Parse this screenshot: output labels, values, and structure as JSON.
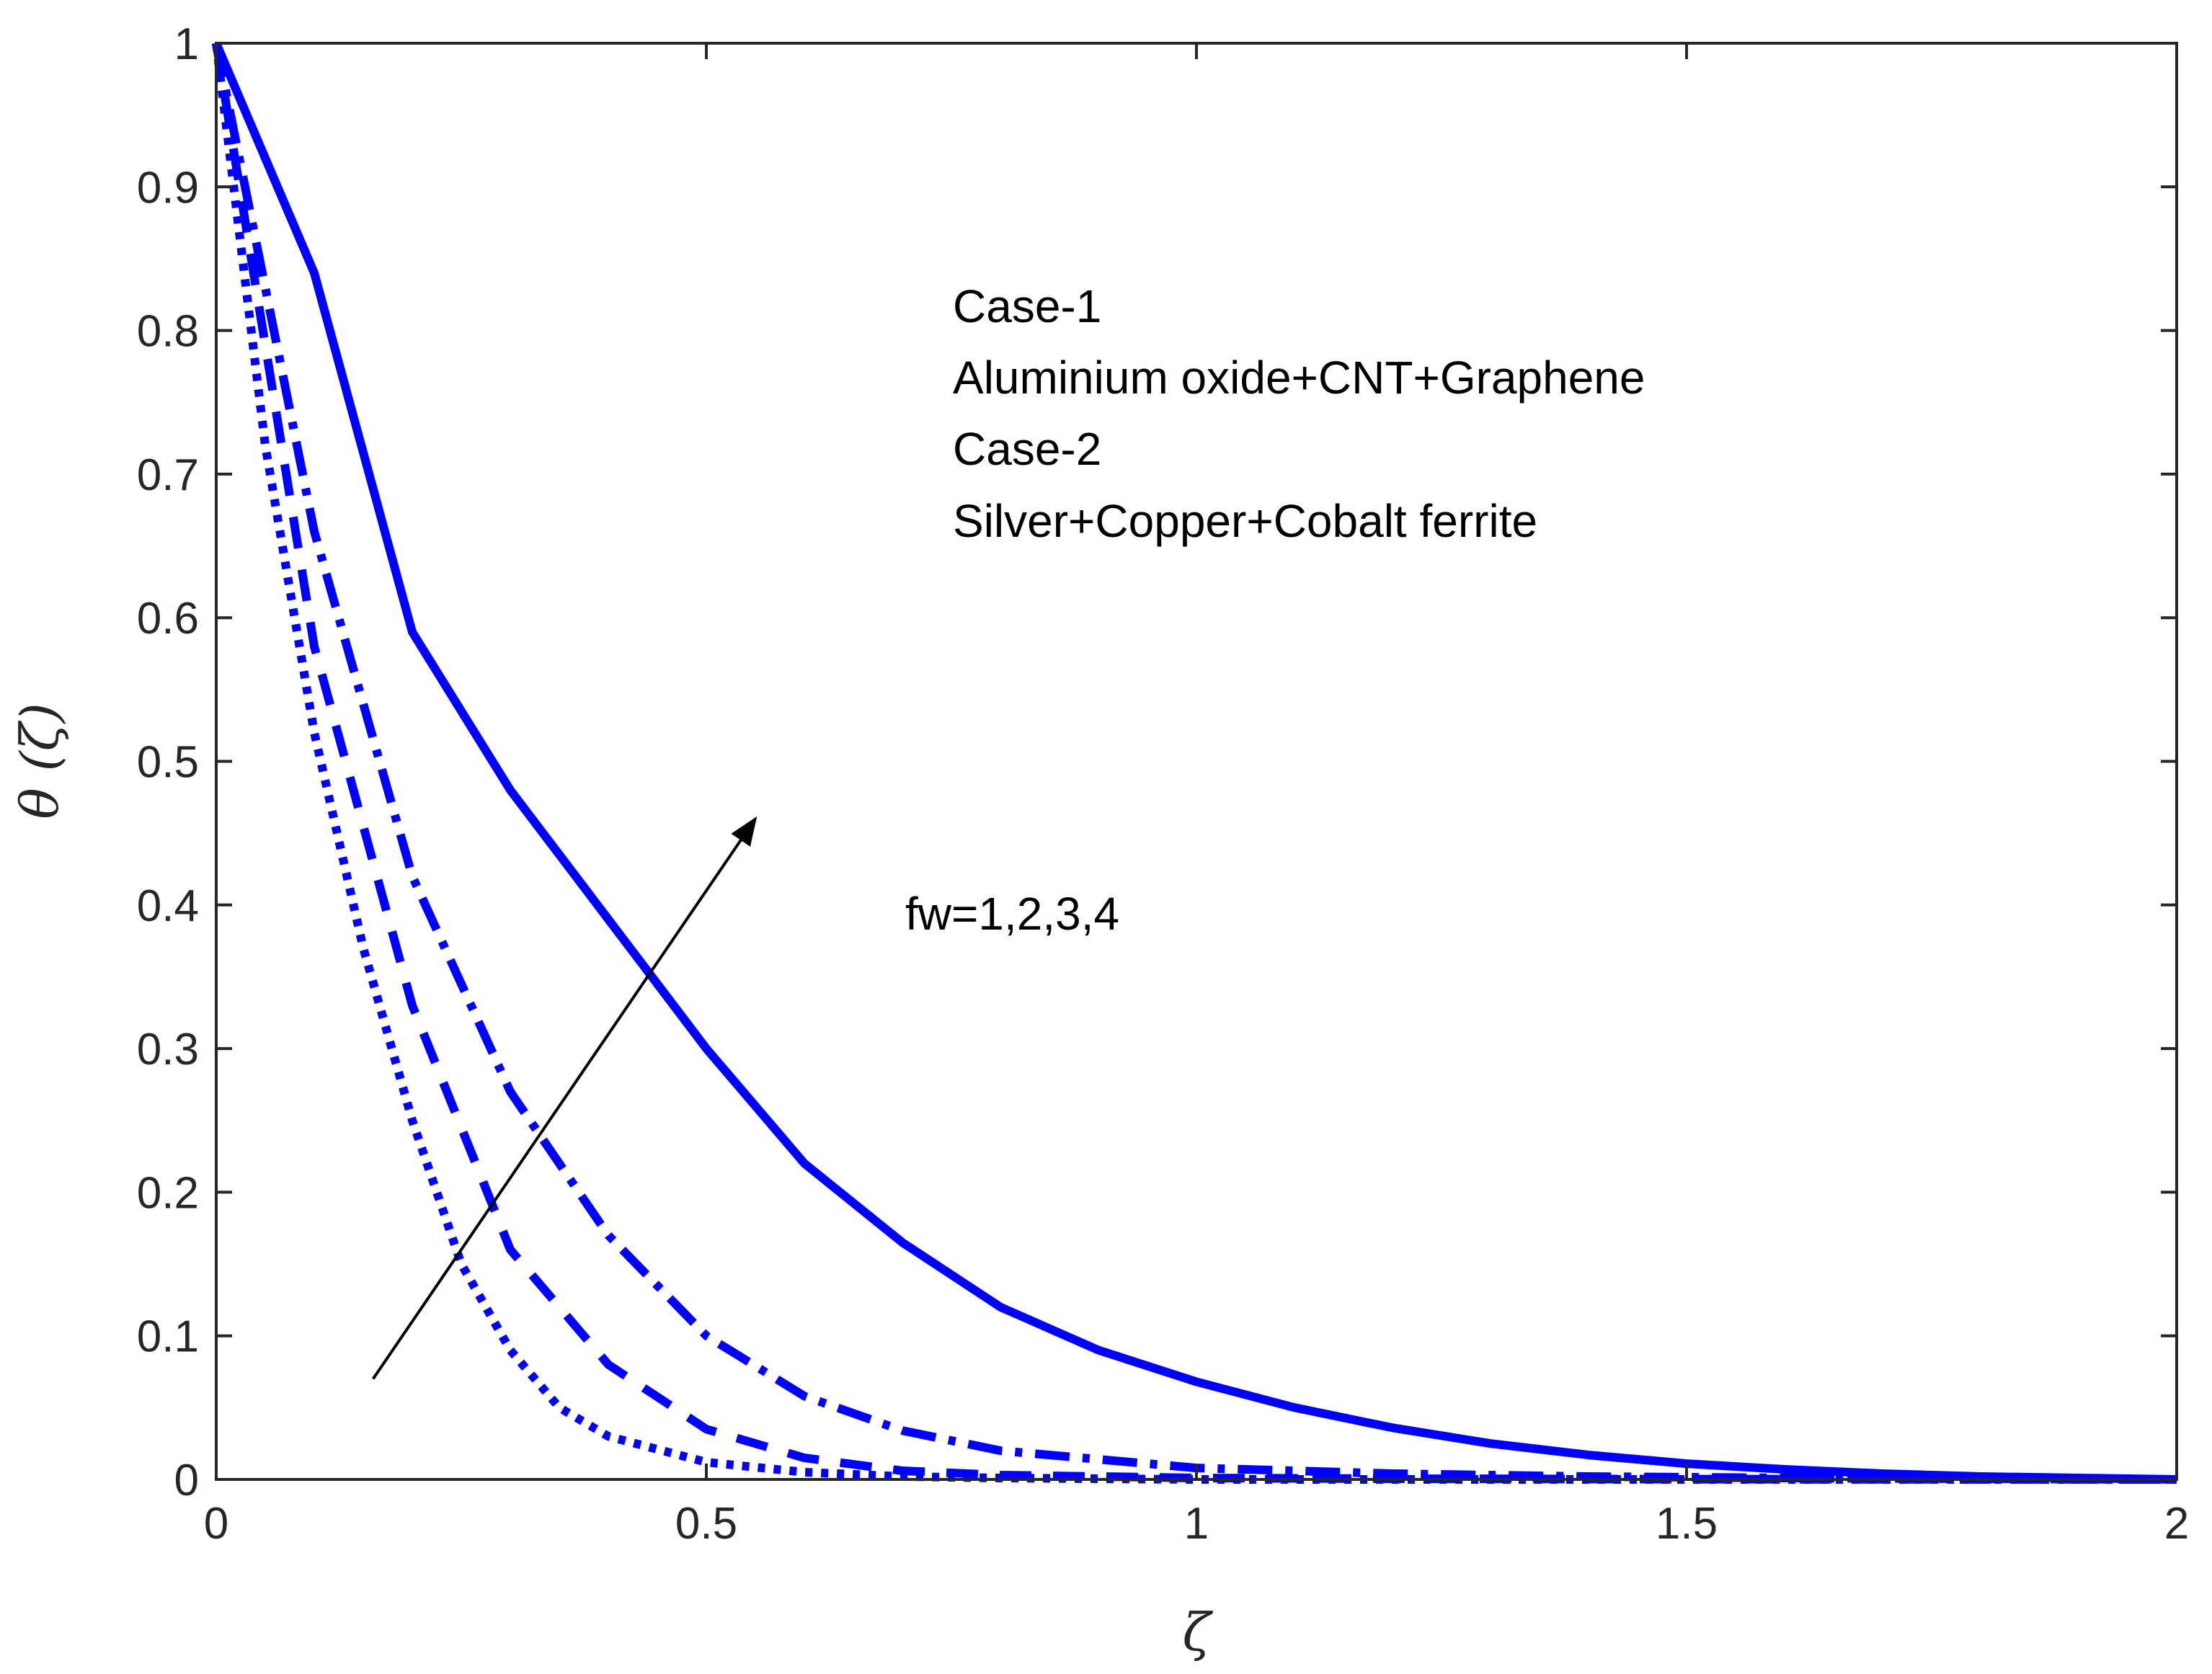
{
  "chart_data": {
    "type": "line",
    "title": "",
    "xlabel": "ζ",
    "ylabel": "θ (ζ)",
    "xlim": [
      0,
      2
    ],
    "ylim": [
      0,
      1
    ],
    "grid": false,
    "xticks": [
      0,
      0.5,
      1,
      1.5,
      2
    ],
    "xtick_labels": [
      "0",
      "0.5",
      "1",
      "1.5",
      "2"
    ],
    "yticks": [
      0,
      0.1,
      0.2,
      0.3,
      0.4,
      0.5,
      0.6,
      0.7,
      0.8,
      0.9,
      1
    ],
    "ytick_labels": [
      "0",
      "0.1",
      "0.2",
      "0.3",
      "0.4",
      "0.5",
      "0.6",
      "0.7",
      "0.8",
      "0.9",
      "1"
    ],
    "line_color": "#0000ff",
    "axis_color": "#262626",
    "series": [
      {
        "name": "fw=1",
        "style": "solid",
        "x": [
          0,
          0.1,
          0.2,
          0.3,
          0.4,
          0.5,
          0.6,
          0.7,
          0.8,
          0.9,
          1.0,
          1.1,
          1.2,
          1.3,
          1.4,
          1.5,
          1.6,
          1.7,
          1.8,
          1.9,
          2.0
        ],
        "y": [
          1,
          0.84,
          0.59,
          0.48,
          0.39,
          0.3,
          0.22,
          0.165,
          0.12,
          0.09,
          0.068,
          0.05,
          0.036,
          0.025,
          0.017,
          0.011,
          0.007,
          0.004,
          0.002,
          0.001,
          0
        ]
      },
      {
        "name": "fw=2",
        "style": "dashdot",
        "x": [
          0,
          0.1,
          0.2,
          0.3,
          0.4,
          0.5,
          0.6,
          0.7,
          0.8,
          1.0,
          1.2,
          1.4,
          1.6,
          1.8,
          2.0
        ],
        "y": [
          1,
          0.66,
          0.42,
          0.27,
          0.17,
          0.1,
          0.058,
          0.034,
          0.02,
          0.008,
          0.004,
          0.002,
          0.001,
          0.0005,
          0
        ]
      },
      {
        "name": "fw=3",
        "style": "dashed",
        "x": [
          0,
          0.1,
          0.2,
          0.3,
          0.4,
          0.5,
          0.6,
          0.7,
          0.8,
          1.0,
          1.2,
          1.5,
          2.0
        ],
        "y": [
          1,
          0.58,
          0.33,
          0.16,
          0.08,
          0.035,
          0.015,
          0.006,
          0.003,
          0.001,
          0.0005,
          0.0002,
          0
        ]
      },
      {
        "name": "fw=4",
        "style": "dotted",
        "x": [
          0,
          0.05,
          0.1,
          0.15,
          0.2,
          0.25,
          0.3,
          0.35,
          0.4,
          0.5,
          0.6,
          0.7,
          0.8,
          1.0,
          1.5,
          2.0
        ],
        "y": [
          1,
          0.72,
          0.52,
          0.37,
          0.25,
          0.15,
          0.09,
          0.05,
          0.03,
          0.012,
          0.005,
          0.002,
          0.001,
          0,
          0,
          0
        ]
      }
    ],
    "annotations": {
      "legend_lines": [
        "Case-1",
        "Aluminium oxide+CNT+Graphene",
        "Case-2",
        "Silver+Copper+Cobalt ferrite"
      ],
      "arrow_label": "fw=1,2,3,4",
      "arrow": {
        "from": [
          0.16,
          0.07
        ],
        "to": [
          0.55,
          0.46
        ]
      }
    }
  }
}
